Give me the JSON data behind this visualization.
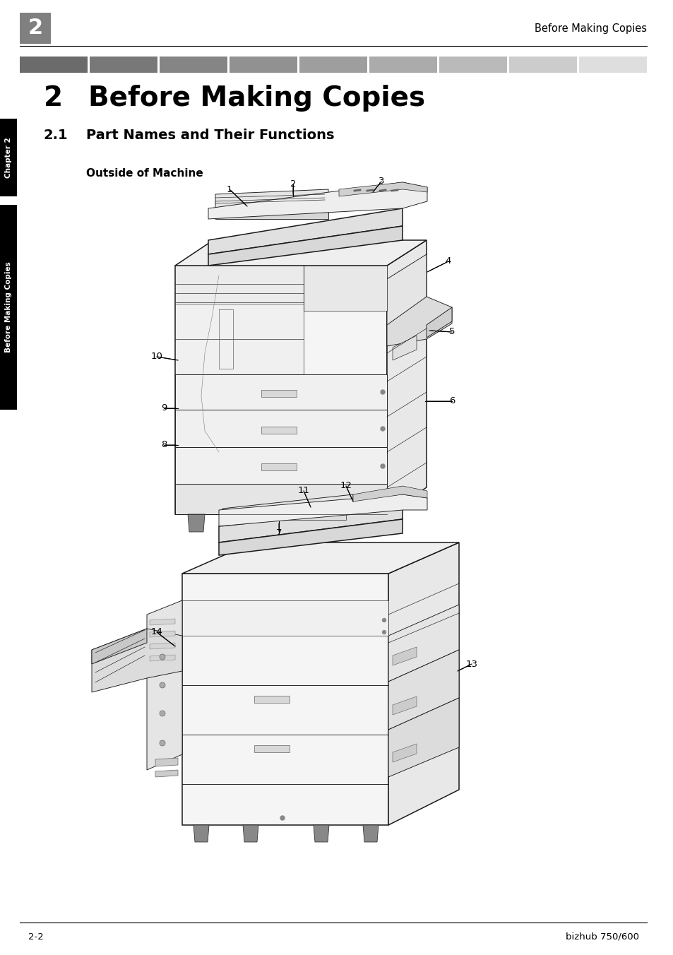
{
  "page_width": 9.54,
  "page_height": 13.52,
  "bg_color": "#ffffff",
  "header_number": "2",
  "header_number_bg": "#808080",
  "header_title": "Before Making Copies",
  "chapter_title_number": "2",
  "chapter_title_text": "Before Making Copies",
  "section_number": "2.1",
  "section_title": "Part Names and Their Functions",
  "subsection_title": "Outside of Machine",
  "sidebar_text_top": "Chapter 2",
  "sidebar_text_bottom": "Before Making Copies",
  "footer_left": "2-2",
  "footer_right": "bizhub 750/600",
  "gradient_colors": [
    0.42,
    0.47,
    0.52,
    0.57,
    0.62,
    0.67,
    0.73,
    0.8,
    0.87
  ],
  "label_font_size": 9.5,
  "header_font_size": 10.5,
  "chapter_font_size": 28,
  "section_font_size": 14,
  "subsection_font_size": 11
}
